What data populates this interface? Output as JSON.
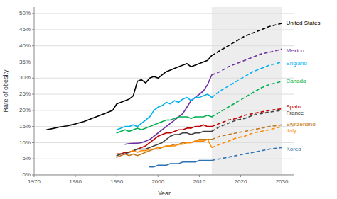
{
  "chart_data": {
    "type": "line",
    "xlabel": "Year",
    "ylabel": "Rate of obesity",
    "xlim": [
      1970,
      2033
    ],
    "ylim": [
      0,
      52
    ],
    "xticks": [
      1970,
      1980,
      1990,
      2000,
      2010,
      2020,
      2030
    ],
    "yticks": [
      {
        "value": 0,
        "label": "0%"
      },
      {
        "value": 5,
        "label": "5%"
      },
      {
        "value": 10,
        "label": "10%"
      },
      {
        "value": 15,
        "label": "15%"
      },
      {
        "value": 20,
        "label": "20%"
      },
      {
        "value": 25,
        "label": "25%"
      },
      {
        "value": 30,
        "label": "30%"
      },
      {
        "value": 35,
        "label": "35%"
      },
      {
        "value": 40,
        "label": "40%"
      },
      {
        "value": 45,
        "label": "45%"
      },
      {
        "value": 50,
        "label": "50%"
      }
    ],
    "grid": "y",
    "projection_span": [
      2013,
      2030
    ],
    "series": [
      {
        "name": "United States",
        "color": "#000000",
        "label_x": 2031,
        "label_y": 47,
        "segments": [
          {
            "line_style": "solid",
            "x": [
              1973,
              1975,
              1976,
              1978,
              1979,
              1980,
              1981,
              1982,
              1983,
              1984,
              1985,
              1986,
              1987,
              1988,
              1989,
              1990,
              1991,
              1992,
              1993,
              1994,
              1995,
              1996,
              1997,
              1998,
              1999,
              2000,
              2001,
              2002,
              2003,
              2004,
              2005,
              2006,
              2007,
              2008,
              2009,
              2010,
              2011,
              2012,
              2013
            ],
            "values": [
              14,
              14.5,
              14.8,
              15.2,
              15.5,
              15.8,
              16.2,
              16.5,
              17,
              17.5,
              18,
              18.5,
              19,
              19.5,
              20,
              22,
              22.5,
              23,
              23.5,
              24.5,
              29,
              29.5,
              28.5,
              30,
              30.5,
              30,
              31,
              32,
              32.5,
              33,
              33.5,
              34,
              34.5,
              33.5,
              34,
              34.5,
              35,
              35.5,
              37
            ]
          },
          {
            "line_style": "dashed",
            "x": [
              2013,
              2015,
              2017,
              2019,
              2021,
              2023,
              2025,
              2027,
              2030
            ],
            "values": [
              37,
              38.5,
              40,
              41.5,
              43,
              44,
              45,
              46,
              47
            ]
          }
        ]
      },
      {
        "name": "Mexico",
        "color": "#7030a0",
        "label_x": 2031,
        "label_y": 38.5,
        "segments": [
          {
            "line_style": "solid",
            "x": [
              1992,
              1993,
              1994,
              1995,
              1996,
              1997,
              1998,
              1999,
              2000,
              2001,
              2002,
              2003,
              2004,
              2005,
              2006,
              2007,
              2008,
              2009,
              2010,
              2011,
              2012,
              2013
            ],
            "values": [
              9.5,
              9.7,
              9.8,
              9.8,
              10,
              10.5,
              11,
              12,
              13,
              14,
              15,
              16,
              17,
              18,
              19,
              21,
              23,
              24,
              25,
              26,
              28,
              31
            ]
          },
          {
            "line_style": "dashed",
            "x": [
              2013,
              2015,
              2017,
              2019,
              2021,
              2023,
              2025,
              2027,
              2030
            ],
            "values": [
              31,
              32,
              33.5,
              34.5,
              35.5,
              36.5,
              37.5,
              38,
              39
            ]
          }
        ]
      },
      {
        "name": "England",
        "color": "#00b0f0",
        "label_x": 2031,
        "label_y": 34.5,
        "segments": [
          {
            "line_style": "solid",
            "x": [
              1990,
              1991,
              1992,
              1993,
              1994,
              1995,
              1996,
              1997,
              1998,
              1999,
              2000,
              2001,
              2002,
              2003,
              2004,
              2005,
              2006,
              2007,
              2008,
              2009,
              2010,
              2011,
              2012,
              2013
            ],
            "values": [
              14,
              14.5,
              15,
              15,
              15.5,
              15,
              16,
              17,
              18,
              20,
              21,
              21.5,
              22.5,
              22,
              23,
              22.5,
              23.5,
              24,
              23,
              24,
              24,
              24.5,
              25,
              24
            ]
          },
          {
            "line_style": "dashed",
            "x": [
              2013,
              2015,
              2017,
              2019,
              2021,
              2023,
              2025,
              2027,
              2030
            ],
            "values": [
              24,
              26,
              27.5,
              29,
              30.5,
              32,
              33,
              34,
              35
            ]
          }
        ]
      },
      {
        "name": "Canada",
        "color": "#00b050",
        "label_x": 2031,
        "label_y": 29,
        "segments": [
          {
            "line_style": "solid",
            "x": [
              1990,
              1991,
              1992,
              1993,
              1994,
              1995,
              1996,
              1997,
              1998,
              1999,
              2000,
              2001,
              2002,
              2003,
              2004,
              2005,
              2006,
              2007,
              2008,
              2009,
              2010,
              2011,
              2012,
              2013
            ],
            "values": [
              13,
              13.5,
              14,
              13.5,
              14,
              14.5,
              14,
              14.5,
              15,
              15.5,
              16,
              16.5,
              17,
              17,
              17.5,
              18,
              18,
              18,
              17.5,
              18,
              18,
              18,
              18.5,
              18
            ]
          },
          {
            "line_style": "dashed",
            "x": [
              2013,
              2015,
              2017,
              2019,
              2021,
              2023,
              2025,
              2027,
              2030
            ],
            "values": [
              18,
              19.5,
              21,
              22.5,
              24,
              25.5,
              27,
              28,
              29
            ]
          }
        ]
      },
      {
        "name": "Spain",
        "color": "#c00000",
        "label_x": 2031,
        "label_y": 21,
        "segments": [
          {
            "line_style": "solid",
            "x": [
              1990,
              1991,
              1992,
              1993,
              1994,
              1995,
              1996,
              1997,
              1998,
              1999,
              2000,
              2001,
              2002,
              2003,
              2004,
              2005,
              2006,
              2007,
              2008,
              2009,
              2010,
              2011,
              2012,
              2013
            ],
            "values": [
              6.5,
              6.5,
              7,
              7,
              7.5,
              8,
              8.5,
              9,
              10,
              11,
              12,
              12.5,
              13,
              13,
              13.5,
              14,
              14,
              14.5,
              14.5,
              15,
              15,
              15.5,
              15,
              15
            ]
          },
          {
            "line_style": "dashed",
            "x": [
              2013,
              2015,
              2017,
              2019,
              2021,
              2023,
              2025,
              2027,
              2030
            ],
            "values": [
              15,
              16,
              17,
              17.5,
              18.5,
              19,
              19.5,
              20,
              20.5
            ]
          }
        ]
      },
      {
        "name": "France",
        "color": "#404040",
        "label_x": 2031,
        "label_y": 19.5,
        "segments": [
          {
            "line_style": "solid",
            "x": [
              1990,
              1991,
              1992,
              1993,
              1994,
              1995,
              1996,
              1997,
              1998,
              1999,
              2000,
              2001,
              2002,
              2003,
              2004,
              2005,
              2006,
              2007,
              2008,
              2009,
              2010,
              2011,
              2012,
              2013
            ],
            "values": [
              6,
              6.5,
              6.5,
              7,
              7.5,
              8,
              8,
              8,
              8.5,
              9,
              9.5,
              10,
              11,
              12,
              12.5,
              12.5,
              13,
              13,
              12.5,
              13,
              13,
              13.5,
              13.5,
              13.5
            ]
          },
          {
            "line_style": "dashed",
            "x": [
              2013,
              2015,
              2017,
              2019,
              2021,
              2023,
              2025,
              2027,
              2030
            ],
            "values": [
              13.5,
              15,
              16,
              17,
              17.5,
              18.5,
              19,
              19.5,
              20
            ]
          }
        ]
      },
      {
        "name": "Switzerland",
        "color": "#c07820",
        "label_x": 2031,
        "label_y": 15.5,
        "segments": [
          {
            "line_style": "solid",
            "x": [
              1990,
              1991,
              1992,
              1993,
              1994,
              1995,
              1996,
              1997,
              1998,
              1999,
              2000,
              2001,
              2002,
              2003,
              2004,
              2005,
              2006,
              2007,
              2008,
              2009,
              2010,
              2011,
              2012,
              2013
            ],
            "values": [
              5.5,
              6,
              6.5,
              6,
              6.5,
              6,
              6.5,
              7,
              7.5,
              8,
              8,
              8.5,
              9,
              9,
              9.5,
              9.5,
              10,
              10,
              10,
              10.5,
              11,
              11,
              11,
              11
            ]
          },
          {
            "line_style": "dashed",
            "x": [
              2013,
              2015,
              2017,
              2019,
              2021,
              2023,
              2025,
              2027,
              2030
            ],
            "values": [
              11,
              12,
              12.5,
              13,
              13.5,
              14,
              14.5,
              15,
              15.5
            ]
          }
        ]
      },
      {
        "name": "Italy",
        "color": "#ff8c00",
        "label_x": 2031,
        "label_y": 14.5,
        "segments": [
          {
            "line_style": "solid",
            "x": [
              1993,
              1994,
              1995,
              1996,
              1997,
              1998,
              1999,
              2000,
              2001,
              2002,
              2003,
              2004,
              2005,
              2006,
              2007,
              2008,
              2009,
              2010,
              2011,
              2012,
              2013
            ],
            "values": [
              7,
              7.5,
              7,
              7.5,
              7.5,
              8,
              8,
              8.5,
              8.5,
              9,
              9,
              9,
              9.5,
              9.5,
              10,
              10,
              10.5,
              10.5,
              10.5,
              11,
              8.5
            ]
          },
          {
            "line_style": "dashed",
            "x": [
              2013,
              2015,
              2017,
              2019,
              2021,
              2023,
              2025,
              2027,
              2030
            ],
            "values": [
              8.5,
              9.5,
              10.5,
              11.5,
              12,
              13,
              13.5,
              14,
              15
            ]
          }
        ]
      },
      {
        "name": "Korea",
        "color": "#2e74b5",
        "label_x": 2031,
        "label_y": 8,
        "segments": [
          {
            "line_style": "solid",
            "x": [
              1998,
              1999,
              2000,
              2001,
              2002,
              2003,
              2004,
              2005,
              2006,
              2007,
              2008,
              2009,
              2010,
              2011,
              2012,
              2013
            ],
            "values": [
              2.5,
              2.5,
              3,
              3,
              3,
              3.5,
              3.5,
              3.5,
              4,
              4,
              4,
              4,
              4.5,
              4.5,
              4.5,
              4.5
            ]
          },
          {
            "line_style": "dashed",
            "x": [
              2013,
              2015,
              2017,
              2019,
              2021,
              2023,
              2025,
              2027,
              2030
            ],
            "values": [
              4.5,
              5,
              5.5,
              6,
              6.5,
              7,
              7.5,
              8,
              8.5
            ]
          }
        ]
      }
    ]
  }
}
